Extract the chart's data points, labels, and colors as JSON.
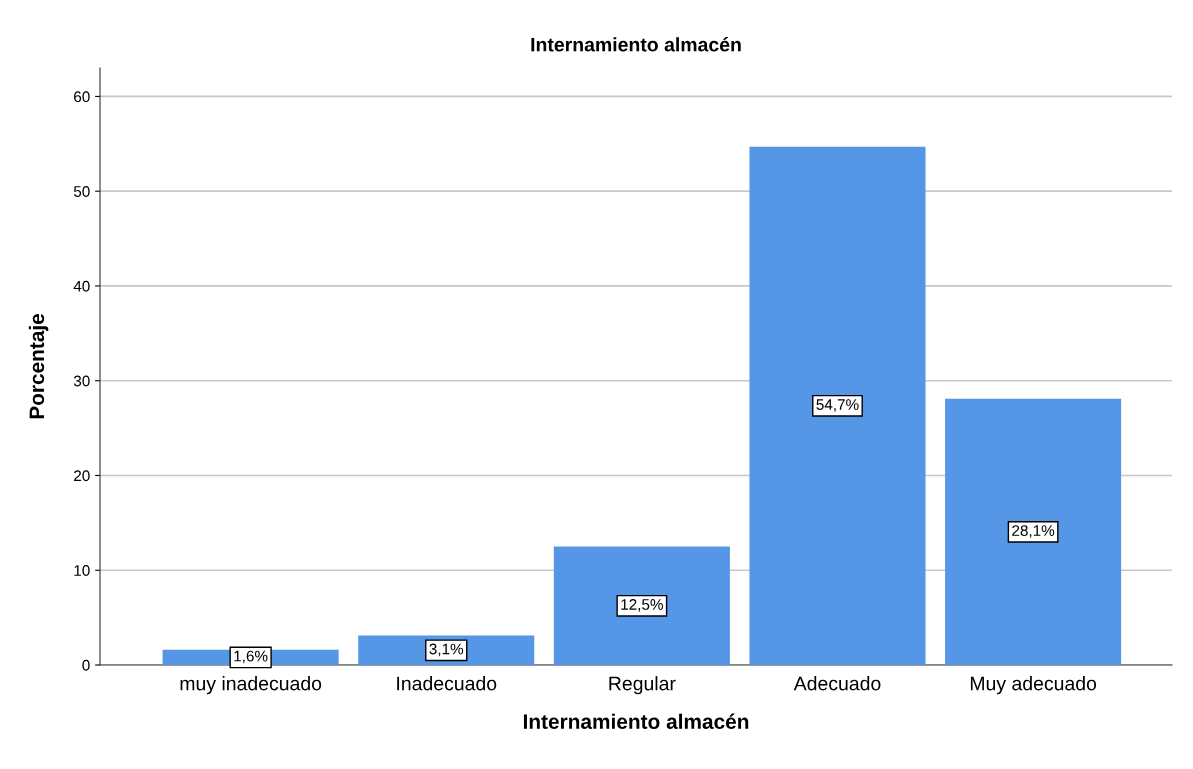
{
  "chart_data": {
    "type": "bar",
    "title": "Internamiento almacén",
    "xlabel": "Internamiento almacén",
    "ylabel": "Porcentaje",
    "categories": [
      "muy inadecuado",
      "Inadecuado",
      "Regular",
      "Adecuado",
      "Muy adecuado"
    ],
    "values": [
      1.6,
      3.1,
      12.5,
      54.7,
      28.1
    ],
    "value_labels": [
      "1,6%",
      "3,1%",
      "12,5%",
      "54,7%",
      "28,1%"
    ],
    "color": "#5596e6",
    "ylim": [
      0,
      63
    ],
    "yticks": [
      0,
      10,
      20,
      30,
      40,
      50,
      60
    ],
    "grid": "y",
    "legend": false
  }
}
